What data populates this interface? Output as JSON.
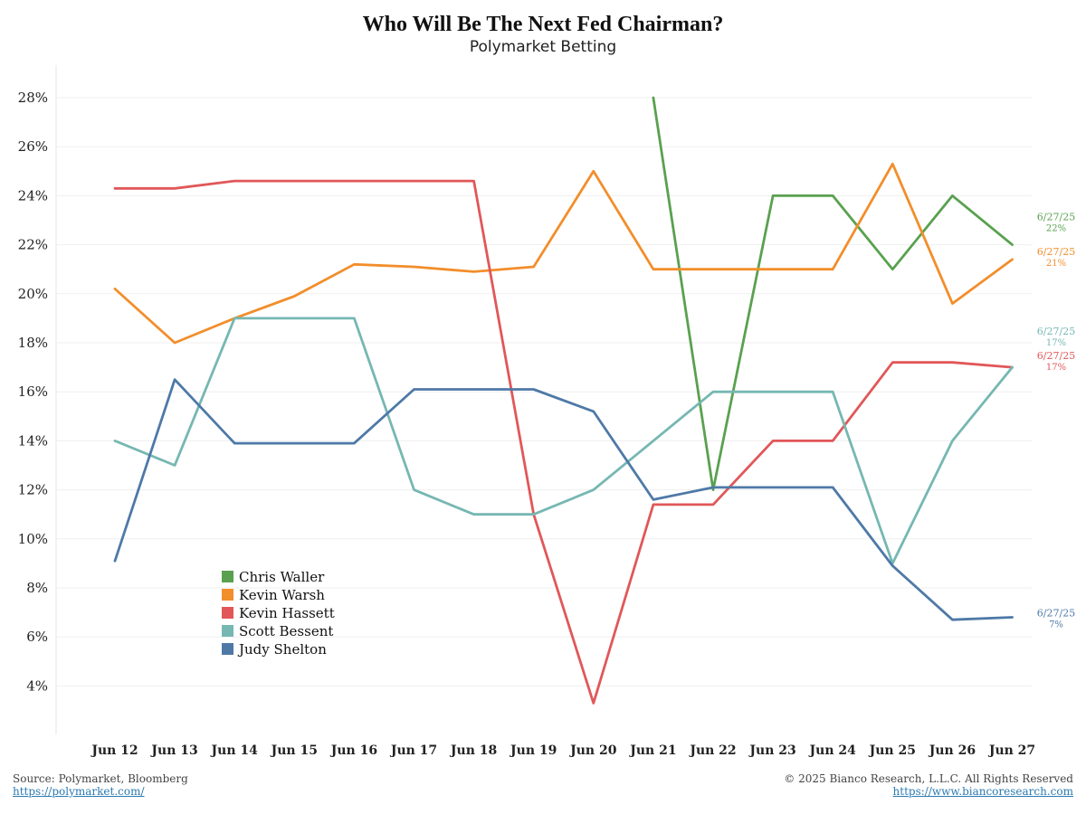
{
  "header": {
    "title": "Who Will Be The Next Fed Chairman?",
    "subtitle": "Polymarket Betting"
  },
  "footer": {
    "source": "Source: Polymarket, Bloomberg",
    "source_link": "https://polymarket.com/",
    "copyright": "© 2025 Bianco Research, L.L.C. All Rights Reserved",
    "copyright_link": "https://www.biancoresearch.com"
  },
  "chart_data": {
    "type": "line",
    "title": "Who Will Be The Next Fed Chairman?",
    "subtitle": "Polymarket Betting",
    "xlabel": "",
    "ylabel": "",
    "categories": [
      "Jun 12",
      "Jun 13",
      "Jun 14",
      "Jun 15",
      "Jun 16",
      "Jun 17",
      "Jun 18",
      "Jun 19",
      "Jun 20",
      "Jun 21",
      "Jun 22",
      "Jun 23",
      "Jun 24",
      "Jun 25",
      "Jun 26",
      "Jun 27"
    ],
    "ylim": [
      2,
      30
    ],
    "yticks": [
      4,
      6,
      8,
      10,
      12,
      14,
      16,
      18,
      20,
      22,
      24,
      26,
      28
    ],
    "ytick_format": "%",
    "grid": true,
    "legend_position": "lower-left",
    "series": [
      {
        "name": "Chris Waller",
        "color": "#59a14f",
        "values": [
          null,
          null,
          null,
          null,
          null,
          null,
          null,
          null,
          null,
          28,
          12,
          24,
          24,
          21,
          24,
          22
        ],
        "end_label": {
          "date": "6/27/25",
          "value": "22%"
        }
      },
      {
        "name": "Kevin Warsh",
        "color": "#f28e2b",
        "values": [
          20.2,
          18,
          19,
          19.9,
          21.2,
          21.1,
          20.9,
          21.1,
          25,
          21,
          21,
          21,
          21,
          25.3,
          19.6,
          21.4
        ],
        "end_label": {
          "date": "6/27/25",
          "value": "21%"
        }
      },
      {
        "name": "Kevin Hassett",
        "color": "#e15759",
        "values": [
          24.3,
          24.3,
          24.6,
          24.6,
          24.6,
          24.6,
          24.6,
          11,
          3.3,
          11.4,
          11.4,
          14,
          14,
          17.2,
          17.2,
          17
        ],
        "end_label": {
          "date": "6/27/25",
          "value": "17%"
        }
      },
      {
        "name": "Scott Bessent",
        "color": "#76b7b2",
        "values": [
          14,
          13,
          19,
          19,
          19,
          12,
          11,
          11,
          12,
          14,
          16,
          16,
          16,
          9,
          14,
          17
        ],
        "end_label": {
          "date": "6/27/25",
          "value": "17%"
        }
      },
      {
        "name": "Judy Shelton",
        "color": "#4e79a7",
        "values": [
          9.1,
          16.5,
          13.9,
          13.9,
          13.9,
          16.1,
          16.1,
          16.1,
          15.2,
          11.6,
          12.1,
          12.1,
          12.1,
          8.9,
          6.7,
          6.8
        ],
        "end_label": {
          "date": "6/27/25",
          "value": "7%"
        }
      }
    ]
  }
}
